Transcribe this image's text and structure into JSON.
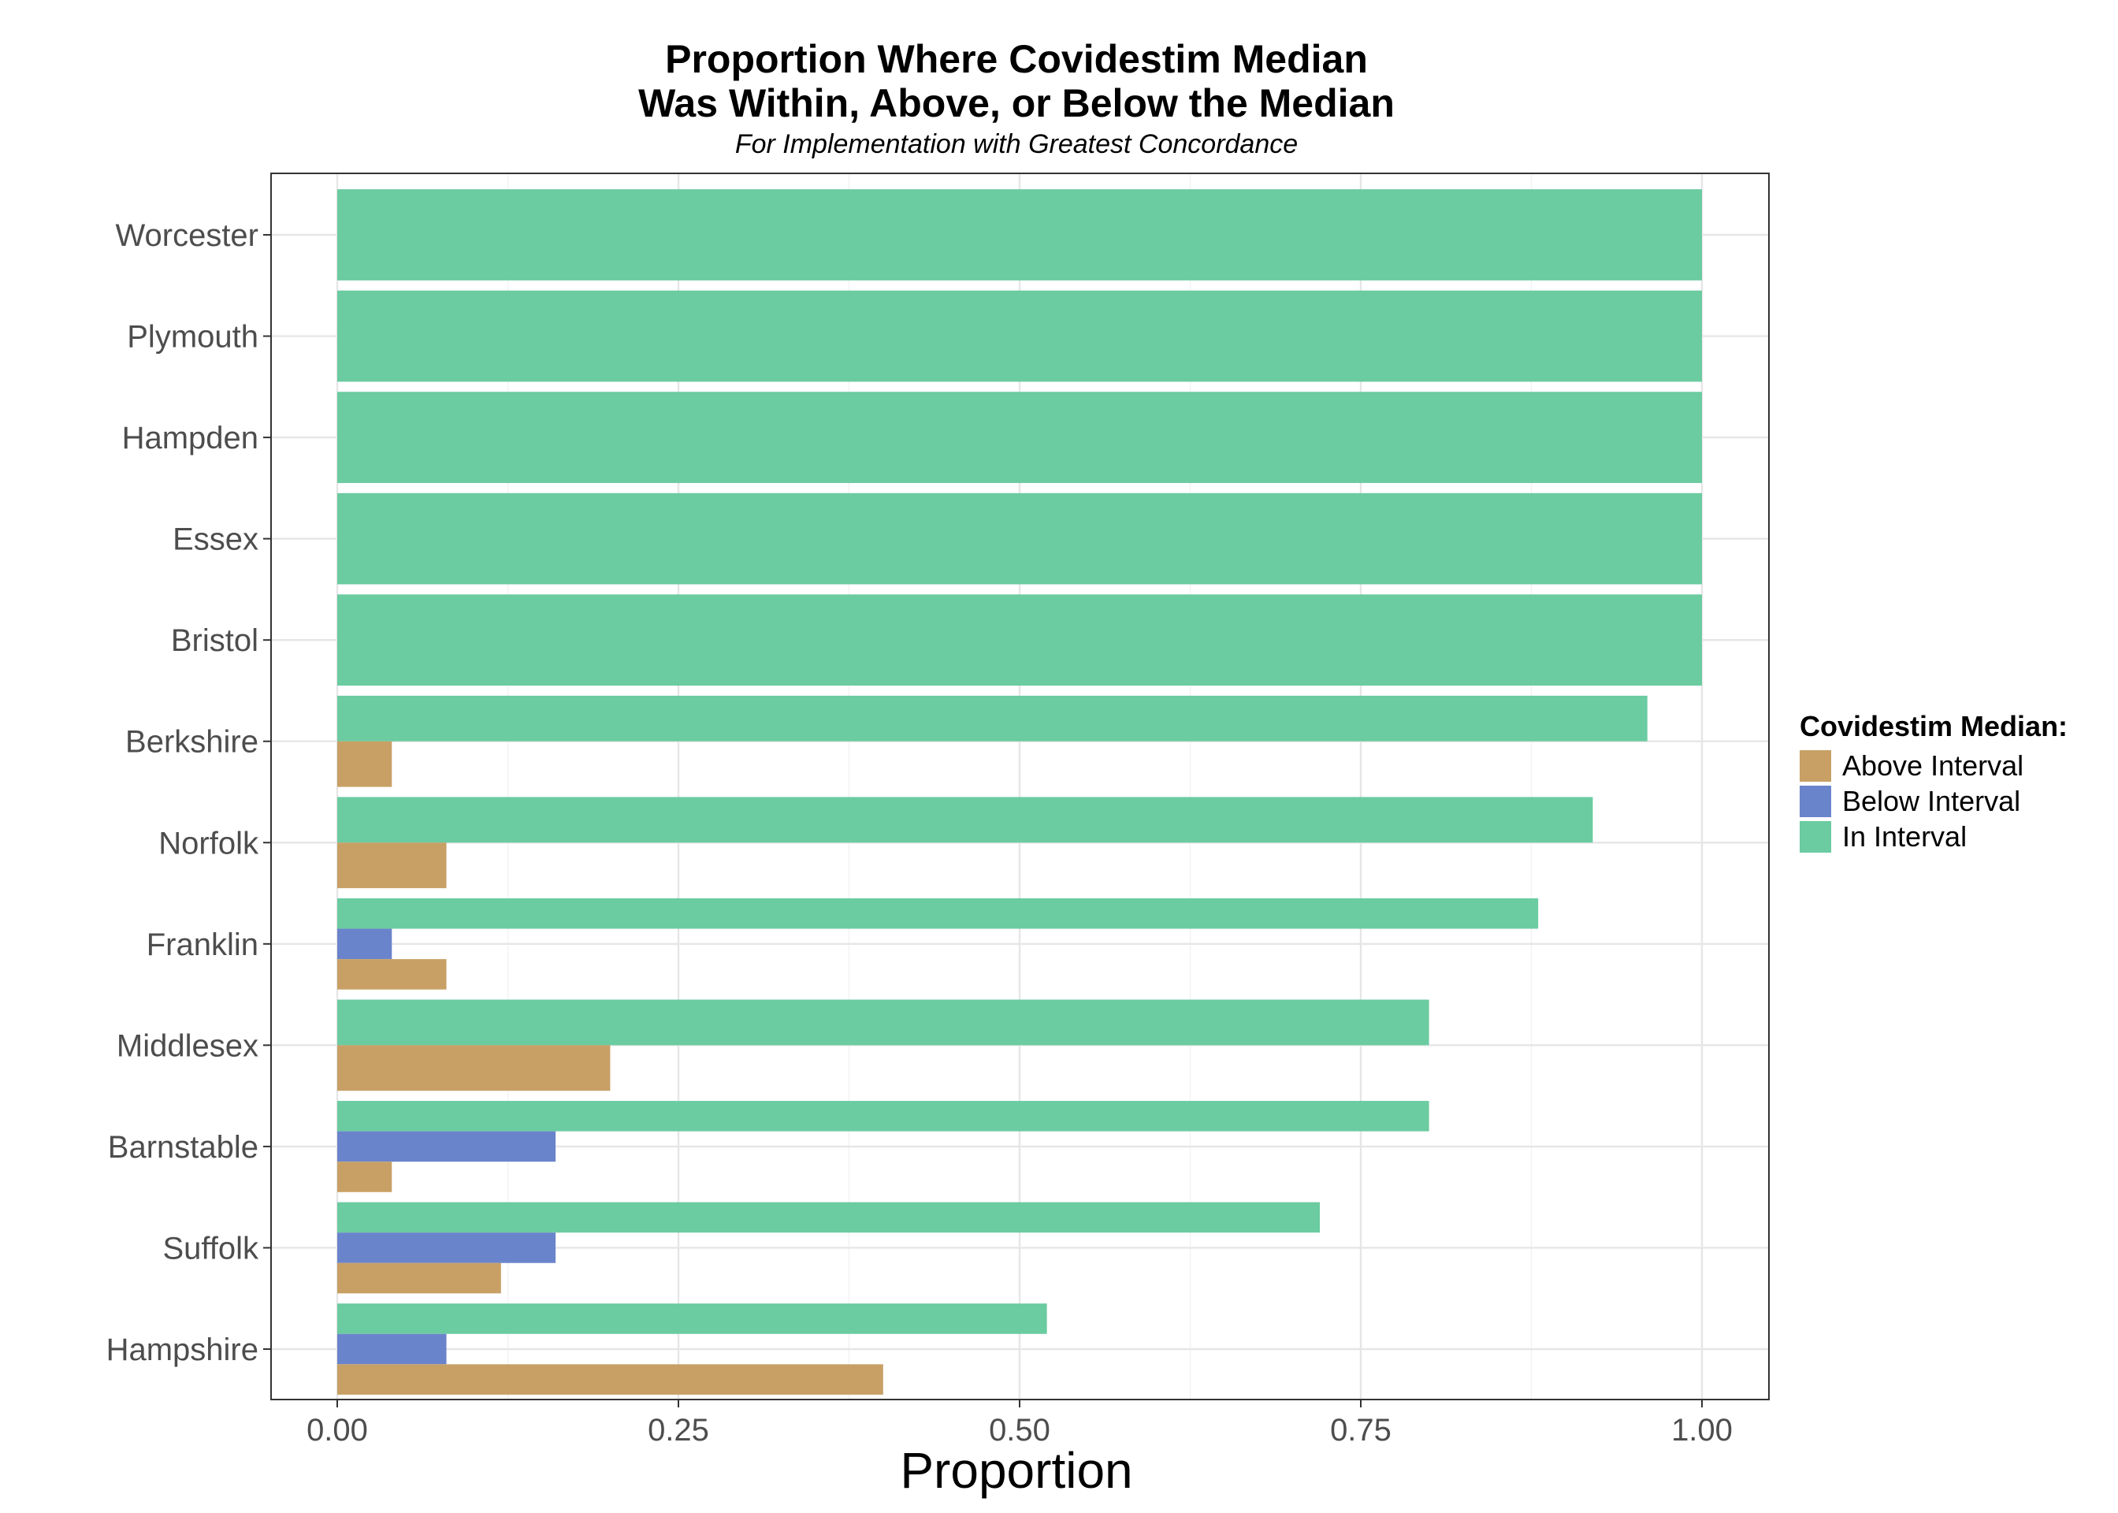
{
  "chart_data": {
    "type": "bar",
    "orientation": "horizontal",
    "title_lines": [
      "Proportion Where Covidestim Median",
      "Was Within, Above, or Below the Median"
    ],
    "subtitle": "For Implementation with Greatest Concordance",
    "xlabel": "Proportion",
    "ylabel": "",
    "xlim": [
      0,
      1
    ],
    "x_ticks": [
      "0.00",
      "0.25",
      "0.50",
      "0.75",
      "1.00"
    ],
    "x_tick_values": [
      0,
      0.25,
      0.5,
      0.75,
      1.0
    ],
    "grid": true,
    "legend": {
      "title": "Covidestim Median:",
      "placement": "right"
    },
    "categories": [
      "Worcester",
      "Plymouth",
      "Hampden",
      "Essex",
      "Bristol",
      "Berkshire",
      "Norfolk",
      "Franklin",
      "Middlesex",
      "Barnstable",
      "Suffolk",
      "Hampshire"
    ],
    "series": [
      {
        "name": "Above Interval",
        "color": "#c8a065",
        "values": [
          0,
          0,
          0,
          0,
          0,
          0.04,
          0.08,
          0.08,
          0.2,
          0.04,
          0.12,
          0.4
        ]
      },
      {
        "name": "Below Interval",
        "color": "#6a84cc",
        "values": [
          0,
          0,
          0,
          0,
          0,
          0,
          0,
          0.04,
          0,
          0.16,
          0.16,
          0.08
        ]
      },
      {
        "name": "In Interval",
        "color": "#6bcba1",
        "values": [
          1.0,
          1.0,
          1.0,
          1.0,
          1.0,
          0.96,
          0.92,
          0.88,
          0.8,
          0.8,
          0.72,
          0.52
        ]
      }
    ]
  }
}
